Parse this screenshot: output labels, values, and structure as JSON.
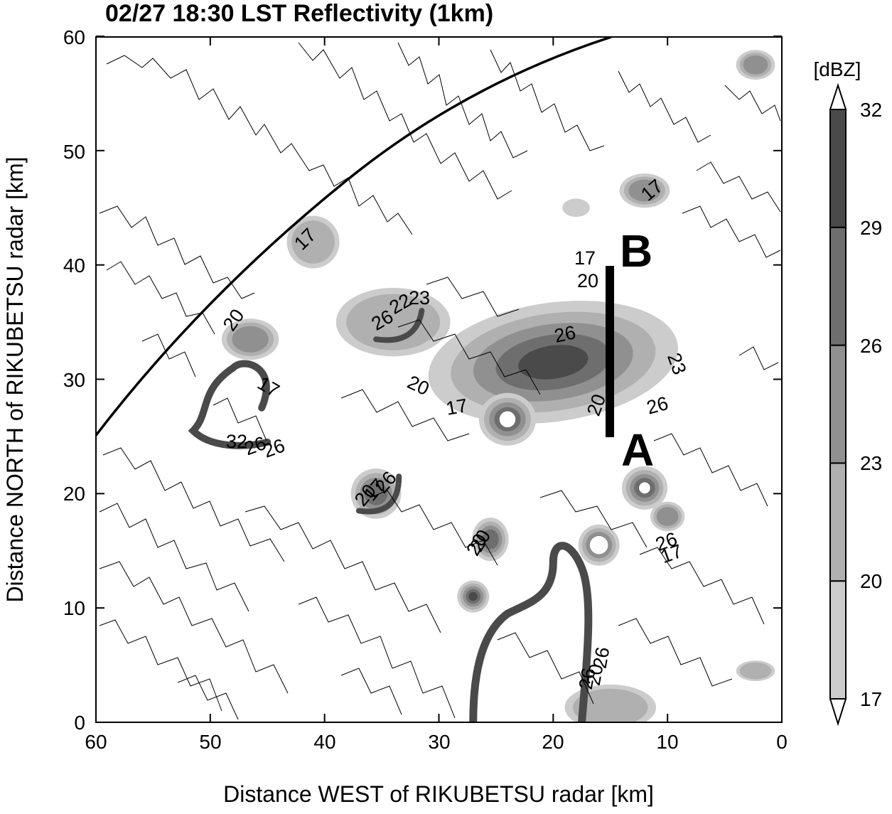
{
  "title": "02/27 18:30 LST Reflectivity (1km)",
  "x_axis": {
    "label": "Distance WEST of RIKUBETSU radar [km]",
    "ticks": [
      "60",
      "50",
      "40",
      "30",
      "20",
      "10",
      "0"
    ]
  },
  "y_axis": {
    "label": "Distance NORTH of RIKUBETSU radar [km]",
    "ticks": [
      "0",
      "10",
      "20",
      "30",
      "40",
      "50",
      "60"
    ]
  },
  "colorbar": {
    "unit": "[dBZ]",
    "levels": [
      "17",
      "20",
      "23",
      "26",
      "29",
      "32"
    ],
    "colors": [
      "#cccccc",
      "#b0b0b0",
      "#909090",
      "#6e6e6e",
      "#4a4a4a"
    ]
  },
  "markers": {
    "a": "A",
    "b": "B"
  },
  "contour_labels": [
    "17",
    "20",
    "26",
    "22",
    "23",
    "20",
    "17",
    "32",
    "26",
    "26",
    "17",
    "20",
    "26",
    "23",
    "26",
    "17",
    "20",
    "20",
    "17",
    "26",
    "20",
    "26",
    "20",
    "26",
    "17",
    "20",
    "26",
    "17"
  ],
  "chart_data": {
    "type": "heatmap",
    "title": "02/27 18:30 LST Reflectivity (1km)",
    "xlabel": "Distance WEST of RIKUBETSU radar [km]",
    "ylabel": "Distance NORTH of RIKUBETSU radar [km]",
    "xlim": [
      60,
      0
    ],
    "ylim": [
      0,
      60
    ],
    "units": "dBZ",
    "levels": [
      17,
      20,
      23,
      26,
      29,
      32
    ],
    "cross_section": {
      "from_label": "A",
      "to_label": "B",
      "x_west_km": 15,
      "y_north_km": [
        25,
        40
      ]
    },
    "range_ring": true
  }
}
